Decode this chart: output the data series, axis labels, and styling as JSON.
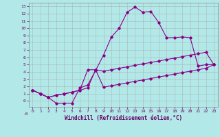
{
  "xlabel": "Windchill (Refroidissement éolien,°C)",
  "bg_color": "#b2e8e8",
  "grid_color": "#aaaaaa",
  "line_color": "#880088",
  "xlim": [
    -0.5,
    23.5
  ],
  "ylim": [
    -0.8,
    13.5
  ],
  "xticks": [
    0,
    1,
    2,
    3,
    4,
    5,
    6,
    7,
    8,
    9,
    10,
    11,
    12,
    13,
    14,
    15,
    16,
    17,
    18,
    19,
    20,
    21,
    22,
    23
  ],
  "yticks": [
    0,
    1,
    2,
    3,
    4,
    5,
    6,
    7,
    8,
    9,
    10,
    11,
    12,
    13
  ],
  "line1_x": [
    0,
    1,
    2,
    3,
    4,
    5,
    6,
    7,
    8,
    9,
    10,
    11,
    12,
    13,
    14,
    15,
    16,
    17,
    18,
    19,
    20,
    21,
    22,
    23
  ],
  "line1_y": [
    1.5,
    1.0,
    0.5,
    -0.3,
    -0.3,
    -0.3,
    1.8,
    2.2,
    4.2,
    6.3,
    8.8,
    10.0,
    12.2,
    12.9,
    12.2,
    12.3,
    10.8,
    8.7,
    8.7,
    8.8,
    8.7,
    4.8,
    5.0,
    5.0
  ],
  "line2_x": [
    0,
    1,
    2,
    3,
    4,
    5,
    6,
    7,
    8,
    9,
    10,
    11,
    12,
    13,
    14,
    15,
    16,
    17,
    18,
    19,
    20,
    21,
    22,
    23
  ],
  "line2_y": [
    1.5,
    1.0,
    0.5,
    0.8,
    1.0,
    1.2,
    1.5,
    4.3,
    4.3,
    4.1,
    4.3,
    4.5,
    4.7,
    4.9,
    5.1,
    5.3,
    5.5,
    5.7,
    5.9,
    6.1,
    6.3,
    6.5,
    6.7,
    5.0
  ],
  "line3_x": [
    0,
    1,
    2,
    3,
    4,
    5,
    6,
    7,
    8,
    9,
    10,
    11,
    12,
    13,
    14,
    15,
    16,
    17,
    18,
    19,
    20,
    21,
    22,
    23
  ],
  "line3_y": [
    1.5,
    1.0,
    0.5,
    0.8,
    1.0,
    1.2,
    1.5,
    1.8,
    4.3,
    1.9,
    2.1,
    2.3,
    2.5,
    2.7,
    2.9,
    3.1,
    3.3,
    3.5,
    3.7,
    3.9,
    4.1,
    4.3,
    4.5,
    5.0
  ]
}
